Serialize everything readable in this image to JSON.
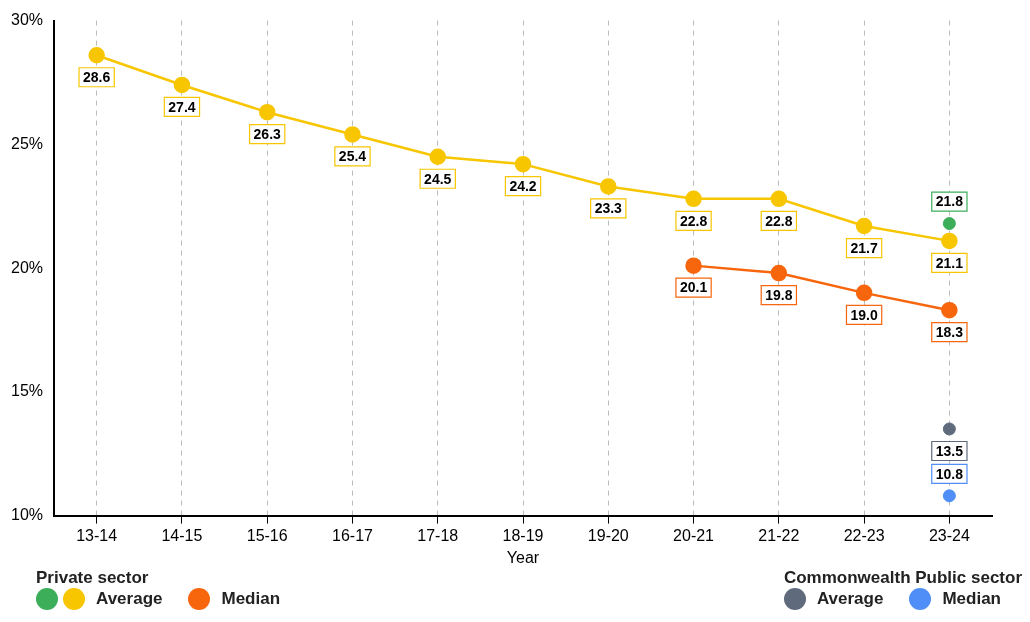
{
  "chart_data": {
    "type": "line",
    "xlabel": "Year",
    "categories": [
      "13-14",
      "14-15",
      "15-16",
      "16-17",
      "17-18",
      "18-19",
      "19-20",
      "20-21",
      "21-22",
      "22-23",
      "23-24"
    ],
    "series": [
      {
        "type": "scatter",
        "color": "#3cae5a",
        "x": [
          "23-24"
        ],
        "values": [
          21.8
        ],
        "value_labels": [
          "21.8"
        ]
      },
      {
        "name": "Average",
        "color": "#f7c600",
        "values": [
          28.6,
          27.4,
          26.3,
          25.4,
          24.5,
          24.2,
          23.3,
          22.8,
          22.8,
          21.7,
          21.1
        ],
        "value_labels": [
          "28.6",
          "27.4",
          "26.3",
          "25.4",
          "24.5",
          "24.2",
          "23.3",
          "22.8",
          "22.8",
          "21.7",
          "21.1"
        ]
      },
      {
        "name": "Median",
        "color": "#f7650c",
        "values": [
          null,
          null,
          null,
          null,
          null,
          null,
          null,
          20.1,
          19.8,
          19.0,
          18.3
        ],
        "value_labels": [
          null,
          null,
          null,
          null,
          null,
          null,
          null,
          "20.1",
          "19.8",
          "19.0",
          "18.3"
        ]
      },
      {
        "name": "Average",
        "type": "scatter",
        "color": "#5f6b7c",
        "x": [
          "23-24"
        ],
        "values": [
          13.5
        ],
        "value_labels": [
          "13.5"
        ]
      },
      {
        "name": "Median",
        "type": "scatter",
        "color": "#4f8ef7",
        "x": [
          "23-24"
        ],
        "values": [
          10.8
        ],
        "value_labels": [
          "10.8"
        ]
      }
    ],
    "ylim": [
      10,
      30
    ],
    "yticks": [
      {
        "value": 10,
        "label": "10%"
      },
      {
        "value": 15,
        "label": "15%"
      },
      {
        "value": 20,
        "label": "20%"
      },
      {
        "value": 25,
        "label": "25%"
      },
      {
        "value": 30,
        "label": "30%"
      }
    ],
    "grid": "x",
    "legend": "bottom",
    "marker": "circle",
    "annotations": [
      "Private sector",
      "Commonwealth Public sector"
    ]
  }
}
